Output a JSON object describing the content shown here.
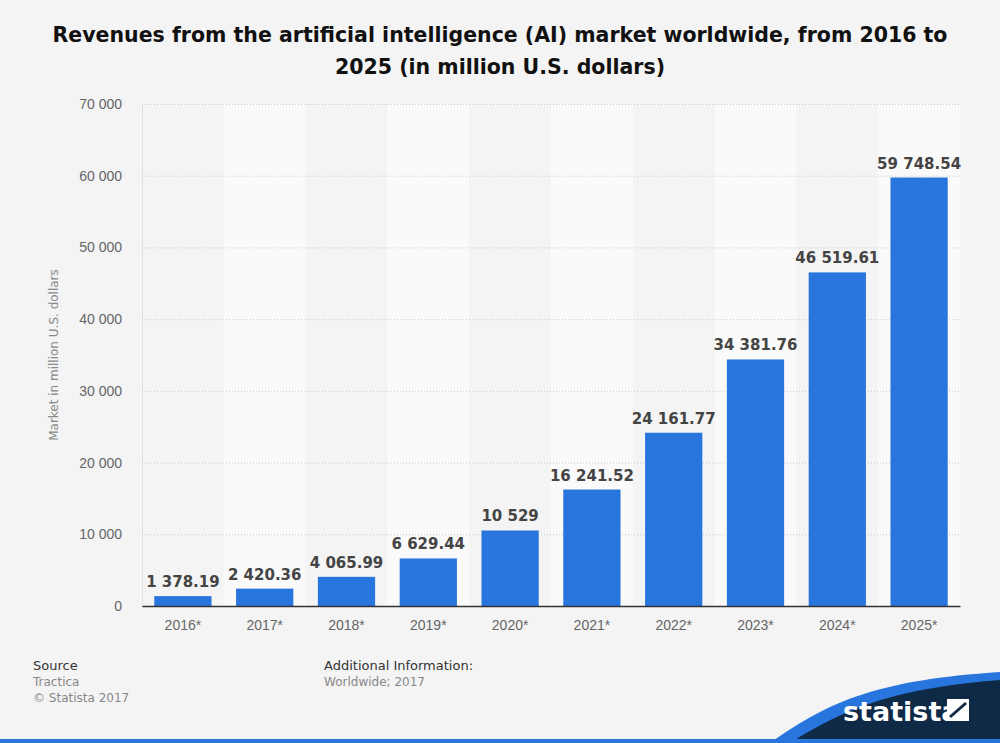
{
  "chart_data": {
    "type": "bar",
    "title": "Revenues from the artificial intelligence (AI) market worldwide, from 2016 to 2025 (in million U.S. dollars)",
    "y_label": "Market in million U.S. dollars",
    "categories": [
      "2016*",
      "2017*",
      "2018*",
      "2019*",
      "2020*",
      "2021*",
      "2022*",
      "2023*",
      "2024*",
      "2025*"
    ],
    "values": [
      1378.19,
      2420.36,
      4065.99,
      6629.44,
      10529,
      16241.52,
      24161.77,
      34381.76,
      46519.61,
      59748.54
    ],
    "value_labels": [
      "1 378.19",
      "2 420.36",
      "4 065.99",
      "6 629.44",
      "10 529",
      "16 241.52",
      "24 161.77",
      "34 381.76",
      "46 519.61",
      "59 748.54"
    ],
    "color": "#2876dd",
    "ylim": [
      0,
      70000
    ],
    "yticks": [
      0,
      {
        "value": 10000,
        "label": "10 000"
      },
      {
        "value": 20000,
        "label": "20 000"
      },
      {
        "value": 30000,
        "label": "30 000"
      },
      {
        "value": 40000,
        "label": "40 000"
      },
      {
        "value": 50000,
        "label": "50 000"
      },
      {
        "value": 60000,
        "label": "60 000"
      },
      {
        "value": 70000,
        "label": "70 000"
      }
    ],
    "grid": true,
    "data_labels": true
  },
  "footer": {
    "source_label": "Source",
    "source": "Tractica",
    "copyright": "© Statista 2017",
    "info_label": "Additional Information:",
    "info": "Worldwide; 2017",
    "brand": "statista"
  }
}
